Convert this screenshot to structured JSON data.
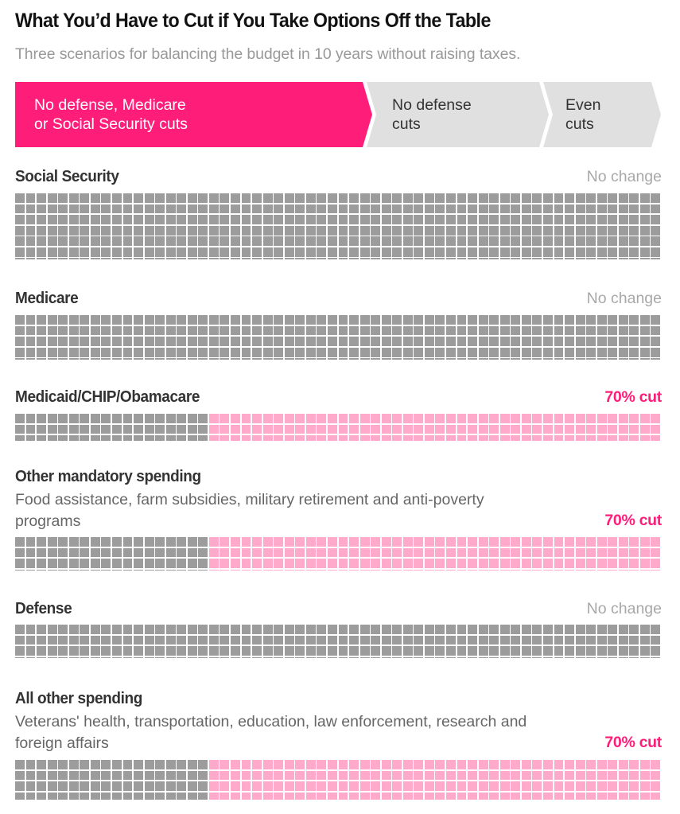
{
  "title": "What You’d Have to Cut if You Take Options Off the Table",
  "subtitle": "Three scenarios for balancing the budget in 10 years without raising taxes.",
  "colors": {
    "accent": "#ff1d7a",
    "tab_inactive": "#e0e0e0",
    "kept": "#9c9c9c",
    "cut": "#ffaacb"
  },
  "scenarios": [
    {
      "line1": "No defense, Medicare",
      "line2": "or Social Security cuts",
      "active": true
    },
    {
      "line1": "No defense",
      "line2": "cuts",
      "active": false
    },
    {
      "line1": "Even",
      "line2": "cuts",
      "active": false
    }
  ],
  "chart_data": {
    "type": "waffle",
    "title": "What You’d Have to Cut if You Take Options Off the Table",
    "subtitle": "Three scenarios for balancing the budget in 10 years without raising taxes.",
    "selected_scenario": "No defense, Medicare or Social Security cuts",
    "units_per_row": 60,
    "legend": {
      "kept": "gray squares = spending kept",
      "cut": "pink squares = spending cut"
    },
    "categories": [
      {
        "name": "Social Security",
        "description": "",
        "status": "No change",
        "cut_pct": 0,
        "size_rows": 6.25
      },
      {
        "name": "Medicare",
        "description": "",
        "status": "No change",
        "cut_pct": 0,
        "size_rows": 4.1
      },
      {
        "name": "Medicaid/CHIP/Obamacare",
        "description": "",
        "status": "70% cut",
        "cut_pct": 70,
        "size_rows": 2.6
      },
      {
        "name": "Other mandatory spending",
        "description": "Food assistance, farm subsidies, military retirement and anti-poverty programs",
        "status": "70% cut",
        "cut_pct": 70,
        "size_rows": 3.15
      },
      {
        "name": "Defense",
        "description": "",
        "status": "No change",
        "cut_pct": 0,
        "size_rows": 3.25
      },
      {
        "name": "All other spending",
        "description": "Veterans' health, transportation, education, law enforcement, research and foreign affairs",
        "status": "70% cut",
        "cut_pct": 70,
        "size_rows": 3.8
      }
    ]
  }
}
